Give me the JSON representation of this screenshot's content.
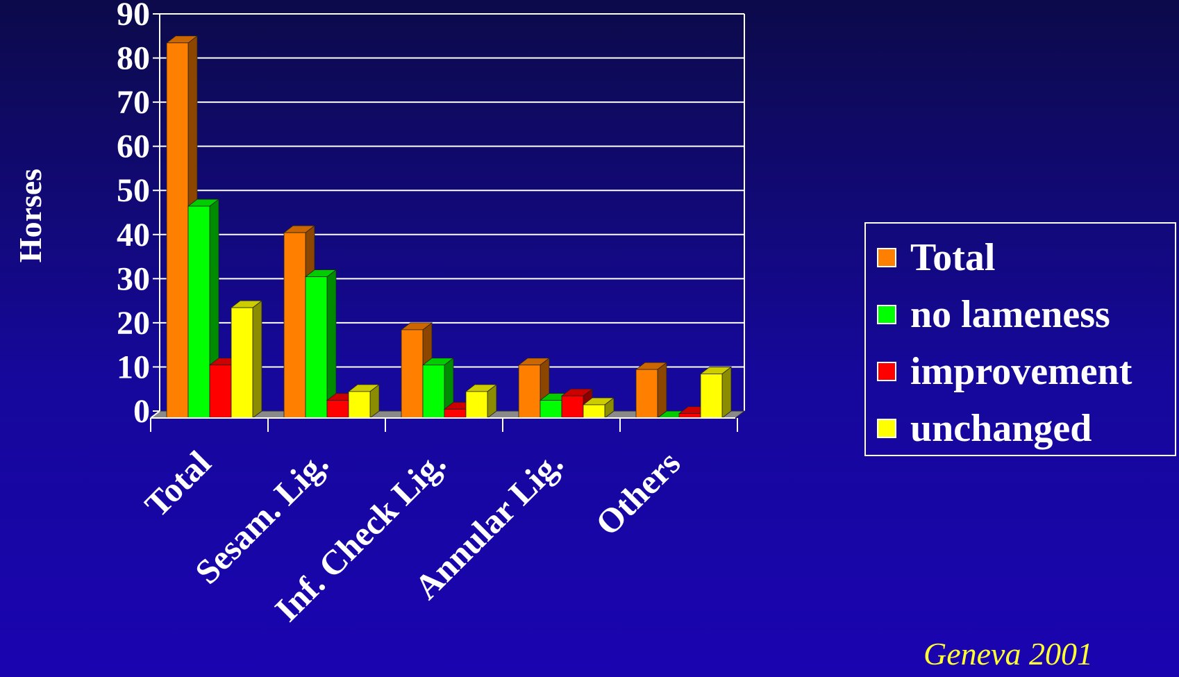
{
  "chart_data": {
    "type": "bar",
    "ylabel": "Horses",
    "ylim": [
      0,
      90
    ],
    "yticks": [
      "0",
      "10",
      "20",
      "30",
      "40",
      "50",
      "60",
      "70",
      "80",
      "90"
    ],
    "grid": true,
    "legend_position": "right",
    "categories": [
      "Total",
      "Sesam. Lig.",
      "Inf. Check Lig.",
      "Annular Lig.",
      "Others"
    ],
    "series": [
      {
        "name": "Total",
        "color": "#ff8000",
        "values": [
          85,
          42,
          20,
          12,
          11
        ]
      },
      {
        "name": "no lameness",
        "color": "#00ff00",
        "values": [
          48,
          32,
          12,
          4,
          0
        ]
      },
      {
        "name": "improvement",
        "color": "#ff0000",
        "values": [
          12,
          4,
          2,
          5,
          1
        ]
      },
      {
        "name": "unchanged",
        "color": "#ffff00",
        "values": [
          25,
          6,
          6,
          3,
          10
        ]
      }
    ]
  },
  "note": "Geneva 2001"
}
